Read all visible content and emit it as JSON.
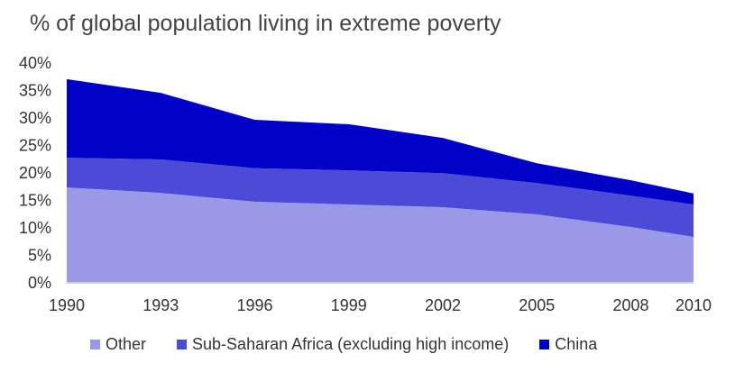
{
  "chart_data": {
    "type": "area",
    "stacked": true,
    "title": "% of global population living in extreme poverty",
    "xlabel": "",
    "ylabel": "",
    "x": [
      1990,
      1993,
      1996,
      1999,
      2002,
      2005,
      2008,
      2010
    ],
    "x_tick_labels": [
      "1990",
      "1993",
      "1996",
      "1999",
      "2002",
      "2005",
      "2008",
      "2010"
    ],
    "ylim": [
      0,
      40
    ],
    "y_tick_labels": [
      "0%",
      "5%",
      "10%",
      "15%",
      "20%",
      "25%",
      "30%",
      "35%",
      "40%"
    ],
    "grid": false,
    "legend_position": "bottom",
    "series": [
      {
        "name": "Other",
        "color": "#9999e8",
        "values": [
          17.2,
          16.2,
          14.6,
          14.1,
          13.6,
          12.3,
          10.0,
          8.2
        ]
      },
      {
        "name": "Sub-Saharan Africa (excluding high income)",
        "color": "#4b4bd8",
        "values": [
          5.4,
          6.1,
          6.1,
          6.2,
          6.2,
          5.7,
          5.7,
          5.9
        ]
      },
      {
        "name": "China",
        "color": "#0000c8",
        "values": [
          14.3,
          12.1,
          8.8,
          8.4,
          6.4,
          3.6,
          2.8,
          2.0
        ]
      }
    ]
  }
}
